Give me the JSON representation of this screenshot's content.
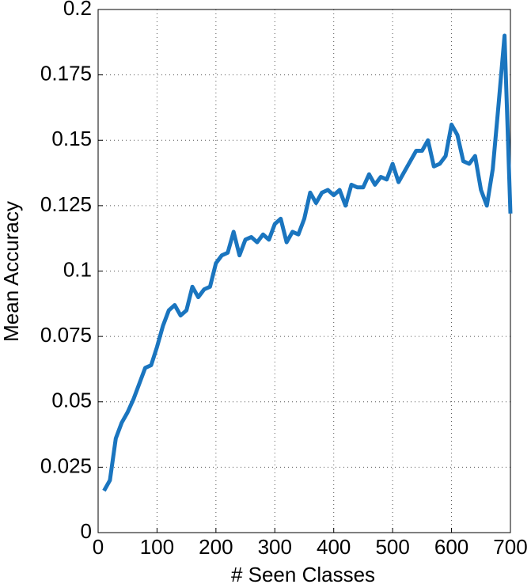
{
  "chart_data": {
    "type": "line",
    "xlabel": "# Seen Classes",
    "ylabel": "Mean Accuracy",
    "x": [
      10,
      20,
      30,
      40,
      50,
      60,
      70,
      80,
      90,
      100,
      110,
      120,
      130,
      140,
      150,
      160,
      170,
      180,
      190,
      200,
      210,
      220,
      230,
      240,
      250,
      260,
      270,
      280,
      290,
      300,
      310,
      320,
      330,
      340,
      350,
      360,
      370,
      380,
      390,
      400,
      410,
      420,
      430,
      440,
      450,
      460,
      470,
      480,
      490,
      500,
      510,
      520,
      530,
      540,
      550,
      560,
      570,
      580,
      590,
      600,
      610,
      620,
      630,
      640,
      650,
      660,
      670,
      680,
      690,
      700
    ],
    "series": [
      {
        "color": "#1a75bf",
        "values": [
          0.016,
          0.02,
          0.036,
          0.042,
          0.046,
          0.051,
          0.057,
          0.063,
          0.064,
          0.071,
          0.079,
          0.085,
          0.087,
          0.083,
          0.085,
          0.094,
          0.09,
          0.093,
          0.094,
          0.103,
          0.106,
          0.107,
          0.115,
          0.106,
          0.112,
          0.113,
          0.111,
          0.114,
          0.112,
          0.118,
          0.12,
          0.111,
          0.115,
          0.114,
          0.12,
          0.13,
          0.126,
          0.13,
          0.131,
          0.129,
          0.131,
          0.125,
          0.133,
          0.132,
          0.132,
          0.137,
          0.133,
          0.136,
          0.135,
          0.141,
          0.134,
          0.138,
          0.142,
          0.146,
          0.146,
          0.15,
          0.14,
          0.141,
          0.144,
          0.156,
          0.152,
          0.142,
          0.141,
          0.144,
          0.131,
          0.125,
          0.139,
          0.164,
          0.19,
          0.122
        ]
      }
    ],
    "xlim": [
      0,
      700
    ],
    "xticks": [
      0,
      100,
      200,
      300,
      400,
      500,
      600,
      700
    ],
    "ylim": [
      0,
      0.2
    ],
    "yticks": [
      0,
      0.025,
      0.05,
      0.075,
      0.1,
      0.125,
      0.15,
      0.175,
      0.2
    ],
    "grid": true
  }
}
